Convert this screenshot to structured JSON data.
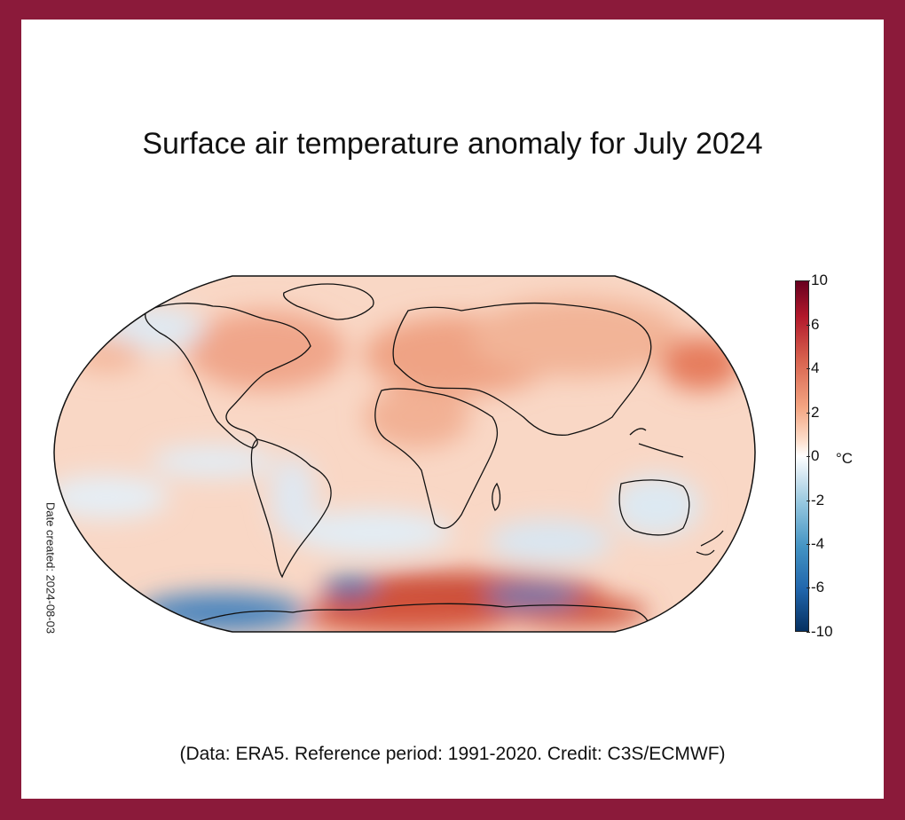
{
  "title": "Surface air temperature anomaly for July 2024",
  "date_created": "Date created: 2024-08-03",
  "footer": "(Data: ERA5.  Reference period: 1991-2020.  Credit: C3S/ECMWF)",
  "colorbar": {
    "ticks": [
      "10",
      "6",
      "4",
      "2",
      "0",
      "-2",
      "-4",
      "-6",
      "-10"
    ],
    "unit": "°C",
    "high_color": "#67001f",
    "low_color": "#053061"
  },
  "map": {
    "projection": "Robinson",
    "month": "July 2024"
  }
}
